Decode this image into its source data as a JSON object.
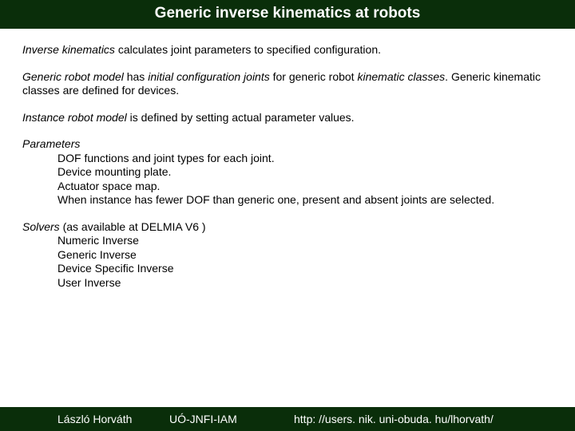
{
  "header": {
    "title": "Generic inverse kinematics at robots"
  },
  "p1": {
    "a": "Inverse kinematics",
    "b": " calculates joint parameters to specified configuration."
  },
  "p2": {
    "a": "Generic robot model",
    "b": " has ",
    "c": "initial configuration joints",
    "d": " for generic robot ",
    "e": "kinematic classes",
    "f": ". Generic kinematic classes are defined for devices."
  },
  "p3": {
    "a": "Instance robot model",
    "b": " is defined by setting actual parameter values."
  },
  "params": {
    "label": "Parameters",
    "l1": "DOF functions and joint types for each joint.",
    "l2": "Device mounting plate.",
    "l3": "Actuator space map.",
    "l4": "When instance has fewer DOF than generic one, present and absent joints are selected."
  },
  "solvers": {
    "label": "Solvers",
    "suffix": " (as available at DELMIA V6 )",
    "l1": "Numeric Inverse",
    "l2": "Generic Inverse",
    "l3": "Device Specific Inverse",
    "l4": "User Inverse"
  },
  "footer": {
    "author": "László Horváth",
    "org": "UÓ-JNFI-IAM",
    "url": "http: //users. nik. uni-obuda. hu/lhorvath/"
  }
}
